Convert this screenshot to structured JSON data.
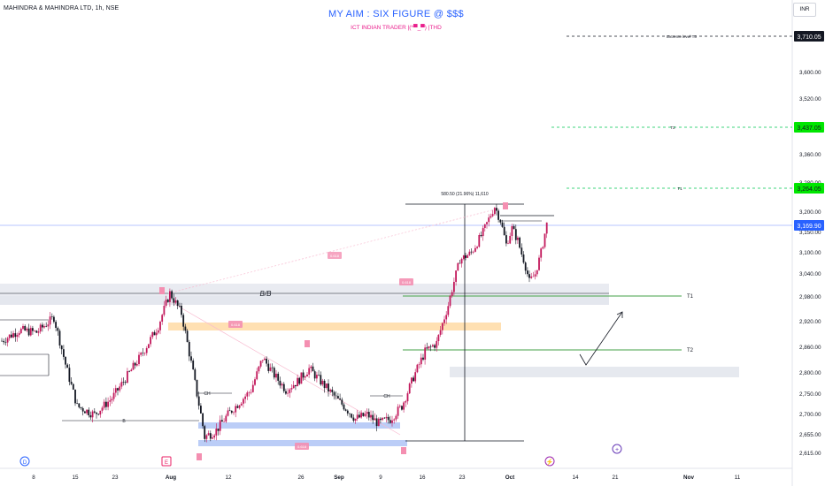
{
  "header": {
    "symbol": "MAHINDRA & MAHINDRA LTD, 1h, NSE",
    "title": "MY AIM : SIX FIGURE @ $$$",
    "subtitle": "ICT INDIAN TRADER |(*▀_▀) |THD",
    "currency": "INR"
  },
  "chart_data": {
    "type": "candlestick",
    "ylim": [
      2600,
      3730
    ],
    "x_ticks": [
      "8",
      "15",
      "23",
      "Aug",
      "12",
      "26",
      "Sep",
      "9",
      "16",
      "23",
      "Oct",
      "14",
      "21",
      "Nov",
      "11"
    ],
    "y_ticks": [
      3600,
      3520,
      3440,
      3360,
      3280,
      3200,
      3150,
      3100,
      3040,
      2980,
      2920,
      2860,
      2800,
      2750,
      2700,
      2655,
      2615
    ],
    "last_price": 3169.9,
    "close_path": [
      {
        "d": 0,
        "v": 2875
      },
      {
        "d": 3,
        "v": 2900
      },
      {
        "d": 6,
        "v": 2895
      },
      {
        "d": 9,
        "v": 2930
      },
      {
        "d": 11,
        "v": 2820
      },
      {
        "d": 13,
        "v": 2720
      },
      {
        "d": 16,
        "v": 2700
      },
      {
        "d": 19,
        "v": 2740
      },
      {
        "d": 21,
        "v": 2780
      },
      {
        "d": 24,
        "v": 2840
      },
      {
        "d": 27,
        "v": 2910
      },
      {
        "d": 29,
        "v": 2990
      },
      {
        "d": 31,
        "v": 2940
      },
      {
        "d": 33,
        "v": 2800
      },
      {
        "d": 35,
        "v": 2650
      },
      {
        "d": 37,
        "v": 2665
      },
      {
        "d": 39,
        "v": 2700
      },
      {
        "d": 41,
        "v": 2730
      },
      {
        "d": 43,
        "v": 2760
      },
      {
        "d": 45,
        "v": 2835
      },
      {
        "d": 47,
        "v": 2795
      },
      {
        "d": 49,
        "v": 2760
      },
      {
        "d": 51,
        "v": 2780
      },
      {
        "d": 53,
        "v": 2810
      },
      {
        "d": 55,
        "v": 2780
      },
      {
        "d": 57,
        "v": 2750
      },
      {
        "d": 59,
        "v": 2720
      },
      {
        "d": 61,
        "v": 2690
      },
      {
        "d": 63,
        "v": 2700
      },
      {
        "d": 65,
        "v": 2680
      },
      {
        "d": 67,
        "v": 2690
      },
      {
        "d": 69,
        "v": 2720
      },
      {
        "d": 71,
        "v": 2790
      },
      {
        "d": 73,
        "v": 2850
      },
      {
        "d": 75,
        "v": 2870
      },
      {
        "d": 77,
        "v": 2960
      },
      {
        "d": 79,
        "v": 3080
      },
      {
        "d": 81,
        "v": 3100
      },
      {
        "d": 83,
        "v": 3150
      },
      {
        "d": 85,
        "v": 3215
      },
      {
        "d": 86,
        "v": 3180
      },
      {
        "d": 87,
        "v": 3120
      },
      {
        "d": 88,
        "v": 3160
      },
      {
        "d": 89,
        "v": 3130
      },
      {
        "d": 90,
        "v": 3080
      },
      {
        "d": 91,
        "v": 3020
      },
      {
        "d": 92,
        "v": 3040
      },
      {
        "d": 93,
        "v": 3100
      },
      {
        "d": 94,
        "v": 3170
      }
    ],
    "levels": [
      {
        "label": "Extreme level  T3",
        "price": 3710.05,
        "badge": "3,710.05"
      },
      {
        "label": "T2",
        "price": 3437.05,
        "badge": "3,437.05"
      },
      {
        "label": "T1",
        "price": 3264.05,
        "badge": "3,264.05"
      },
      {
        "label": "T1",
        "price": 2990
      },
      {
        "label": "T2",
        "price": 2856
      }
    ],
    "range_label": "580.50 (21.96%) 11,610",
    "structure_labels": [
      "B/B",
      "CH",
      "CH",
      "B"
    ],
    "zone_tags": [
      "0.618",
      "0.618",
      "0.618",
      "0.618"
    ],
    "events": [
      "D",
      "E"
    ]
  },
  "colors": {
    "up": "#c2185b",
    "down": "#131722",
    "title": "#2962ff",
    "subtitle": "#e91e8c",
    "target": "#00e600",
    "price": "#2962ff",
    "zone_gray": "#e0e3eb",
    "zone_orange": "#ffe0b2",
    "zone_blue": "#bbcdf7",
    "tag_pink": "#f48fb1",
    "green_line": "#43a047"
  }
}
